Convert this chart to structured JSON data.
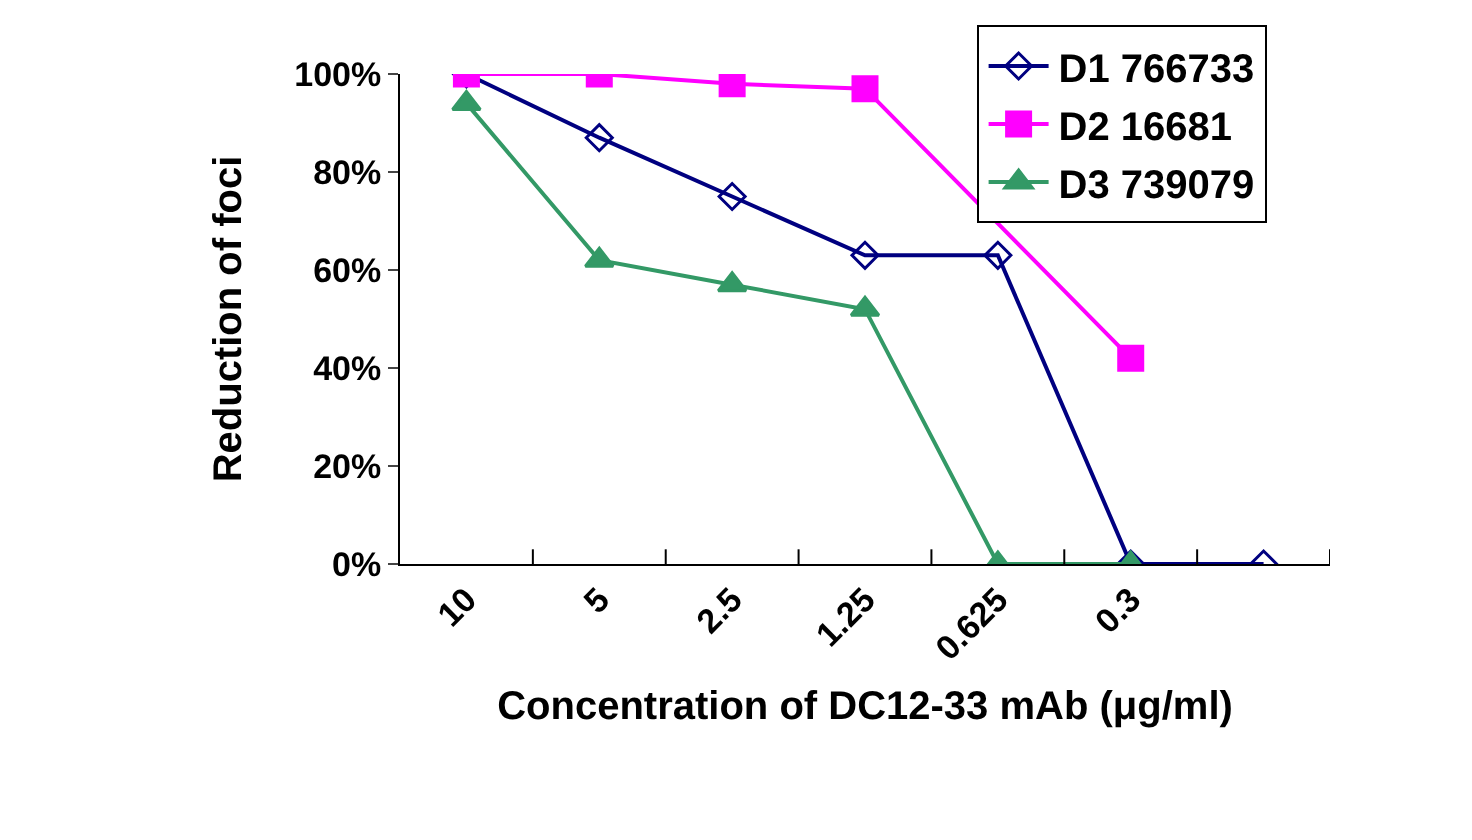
{
  "chart_data": {
    "type": "line",
    "xlabel": "Concentration of DC12-33 mAb (μg/ml)",
    "ylabel": "Reduction of foci",
    "categories": [
      "10",
      "5",
      "2.5",
      "1.25",
      "0.625",
      "0.3",
      null
    ],
    "series": [
      {
        "name": "D1 766733",
        "color": "#000080",
        "marker": "diamond",
        "values": [
          100,
          87,
          75,
          63,
          63,
          0,
          0
        ]
      },
      {
        "name": "D2 16681",
        "color": "#ff00ff",
        "marker": "square",
        "values": [
          100,
          100,
          98,
          97,
          null,
          42,
          null
        ]
      },
      {
        "name": "D3 739079",
        "color": "#339966",
        "marker": "triangle",
        "values": [
          94,
          62,
          57,
          52,
          0,
          0,
          null
        ]
      }
    ],
    "ylim": [
      0,
      100
    ],
    "yticks": [
      {
        "value": 0,
        "label": "0%"
      },
      {
        "value": 20,
        "label": "20%"
      },
      {
        "value": 40,
        "label": "40%"
      },
      {
        "value": 60,
        "label": "60%"
      },
      {
        "value": 80,
        "label": "80%"
      },
      {
        "value": 100,
        "label": "100%"
      }
    ],
    "grid": false,
    "legend": "top right"
  }
}
